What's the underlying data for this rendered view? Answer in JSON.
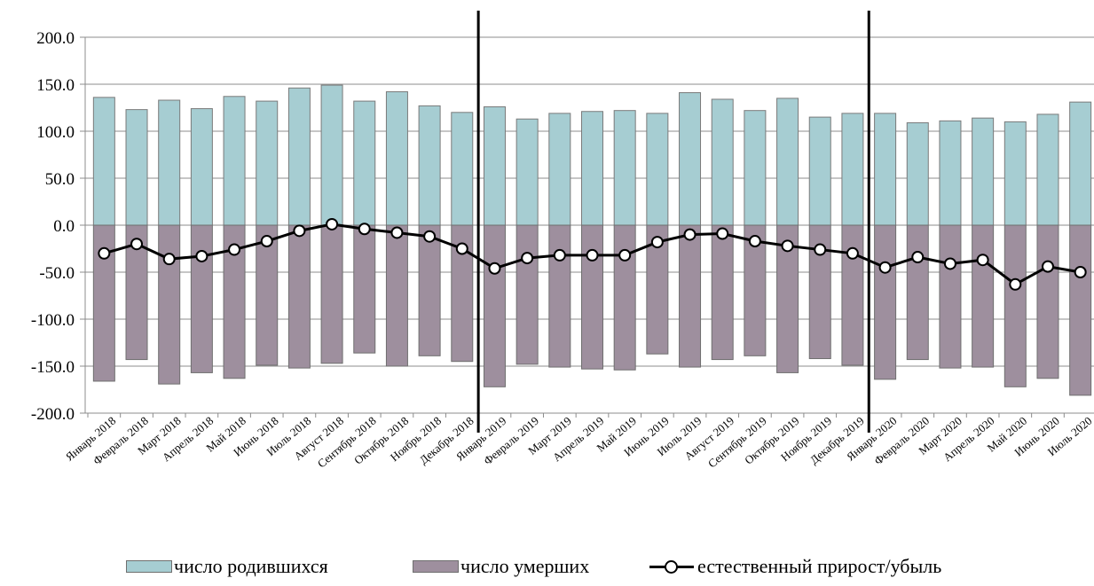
{
  "chart_data": {
    "type": "bar",
    "categories": [
      "Январь 2018",
      "Февраль 2018",
      "Март 2018",
      "Апрель 2018",
      "Май 2018",
      "Июнь 2018",
      "Июль 2018",
      "Август 2018",
      "Сентябрь 2018",
      "Октябрь 2018",
      "Ноябрь 2018",
      "Декабрь 2018",
      "Январь 2019",
      "Февраль 2019",
      "Март 2019",
      "Апрель 2019",
      "Май 2019",
      "Июнь 2019",
      "Июль 2019",
      "Август 2019",
      "Сентябрь 2019",
      "Октябрь 2019",
      "Ноябрь 2019",
      "Декабрь 2019",
      "Январь 2020",
      "Февраль 2020",
      "Март 2020",
      "Апрель 2020",
      "Май 2020",
      "Июнь 2020",
      "Июль 2020"
    ],
    "series": [
      {
        "name": "число родившихся",
        "type": "bar",
        "color": "#a6cdd2",
        "values": [
          136,
          123,
          133,
          124,
          137,
          132,
          146,
          149,
          132,
          142,
          127,
          120,
          126,
          113,
          119,
          121,
          122,
          119,
          141,
          134,
          122,
          135,
          115,
          119,
          119,
          109,
          111,
          114,
          110,
          118,
          131
        ]
      },
      {
        "name": "число умерших",
        "type": "bar",
        "color": "#9e8f9e",
        "values": [
          -166,
          -143,
          -169,
          -157,
          -163,
          -149,
          -152,
          -147,
          -136,
          -150,
          -139,
          -145,
          -172,
          -148,
          -151,
          -153,
          -154,
          -137,
          -151,
          -143,
          -139,
          -157,
          -142,
          -149,
          -164,
          -143,
          -152,
          -151,
          -172,
          -163,
          -181
        ]
      },
      {
        "name": "естественный прирост/убыль",
        "type": "line",
        "color": "#000000",
        "values": [
          -30,
          -20,
          -36,
          -33,
          -26,
          -17,
          -6,
          1,
          -4,
          -8,
          -12,
          -25,
          -46,
          -35,
          -32,
          -32,
          -32,
          -18,
          -10,
          -9,
          -17,
          -22,
          -26,
          -30,
          -45,
          -34,
          -41,
          -37,
          -63,
          -44,
          -50
        ]
      }
    ],
    "ylim": [
      -200,
      200
    ],
    "yticks": [
      "200.0",
      "150.0",
      "100.0",
      "50.0",
      "0.0",
      "-50.0",
      "-100.0",
      "-150.0",
      "-200.0"
    ],
    "ytick_values": [
      200,
      150,
      100,
      50,
      0,
      -50,
      -100,
      -150,
      -200
    ],
    "grid": "horizontal",
    "year_separators_after": [
      "Декабрь 2018",
      "Декабрь 2019"
    ],
    "legend_position": "bottom"
  },
  "legend": {
    "births": "число родившихся",
    "deaths": "число умерших",
    "natural": "естественный прирост/убыль"
  }
}
